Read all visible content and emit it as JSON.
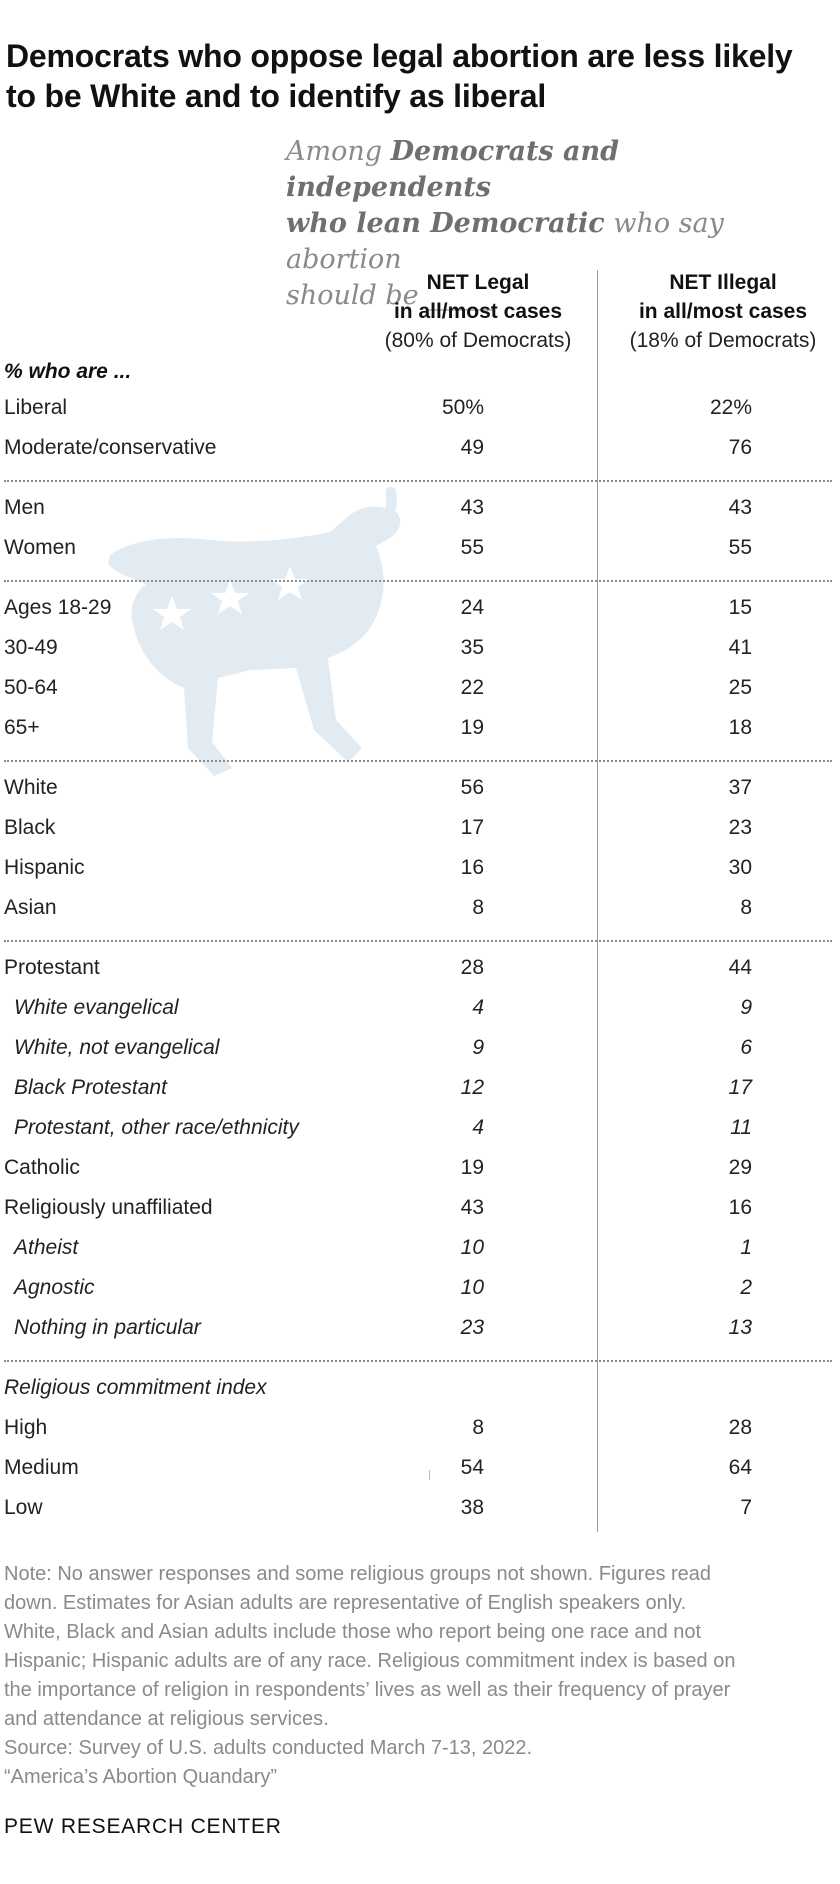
{
  "title_lines": [
    "Democrats who oppose legal abortion are less likely",
    "to be White and to identify as liberal"
  ],
  "subtitle": {
    "line1_plain": "Among ",
    "line1_bold": "Democrats and independents",
    "line2_bold": "who lean Democratic",
    "line2_plain": " who say abortion",
    "line3": "should be _____"
  },
  "columns": [
    {
      "line1": "NET Legal",
      "line2": "in all/most cases",
      "line3": "(80% of Democrats)"
    },
    {
      "line1": "NET Illegal",
      "line2": "in all/most cases",
      "line3": "(18% of Democrats)"
    }
  ],
  "section_label": "% who are ...",
  "groups": [
    {
      "header": "",
      "rows": [
        {
          "label": "Liberal",
          "legal": "50%",
          "illegal": "22%",
          "sub": false
        },
        {
          "label": "Moderate/conservative",
          "legal": "49",
          "illegal": "76",
          "sub": false
        }
      ]
    },
    {
      "header": "",
      "rows": [
        {
          "label": "Men",
          "legal": "43",
          "illegal": "43",
          "sub": false
        },
        {
          "label": "Women",
          "legal": "55",
          "illegal": "55",
          "sub": false
        }
      ]
    },
    {
      "header": "",
      "rows": [
        {
          "label": "Ages 18-29",
          "legal": "24",
          "illegal": "15",
          "sub": false
        },
        {
          "label": "30-49",
          "legal": "35",
          "illegal": "41",
          "sub": false
        },
        {
          "label": "50-64",
          "legal": "22",
          "illegal": "25",
          "sub": false
        },
        {
          "label": "65+",
          "legal": "19",
          "illegal": "18",
          "sub": false
        }
      ]
    },
    {
      "header": "",
      "rows": [
        {
          "label": "White",
          "legal": "56",
          "illegal": "37",
          "sub": false
        },
        {
          "label": "Black",
          "legal": "17",
          "illegal": "23",
          "sub": false
        },
        {
          "label": "Hispanic",
          "legal": "16",
          "illegal": "30",
          "sub": false
        },
        {
          "label": "Asian",
          "legal": "8",
          "illegal": "8",
          "sub": false
        }
      ]
    },
    {
      "header": "",
      "rows": [
        {
          "label": "Protestant",
          "legal": "28",
          "illegal": "44",
          "sub": false
        },
        {
          "label": "White evangelical",
          "legal": "4",
          "illegal": "9",
          "sub": true
        },
        {
          "label": "White, not evangelical",
          "legal": "9",
          "illegal": "6",
          "sub": true
        },
        {
          "label": "Black Protestant",
          "legal": "12",
          "illegal": "17",
          "sub": true
        },
        {
          "label": "Protestant, other race/ethnicity",
          "legal": "4",
          "illegal": "11",
          "sub": true
        },
        {
          "label": "Catholic",
          "legal": "19",
          "illegal": "29",
          "sub": false
        },
        {
          "label": "Religiously unaffiliated",
          "legal": "43",
          "illegal": "16",
          "sub": false
        },
        {
          "label": "Atheist",
          "legal": "10",
          "illegal": "1",
          "sub": true
        },
        {
          "label": "Agnostic",
          "legal": "10",
          "illegal": "2",
          "sub": true
        },
        {
          "label": "Nothing in particular",
          "legal": "23",
          "illegal": "13",
          "sub": true
        }
      ]
    },
    {
      "header": "Religious commitment index",
      "rows": [
        {
          "label": "High",
          "legal": "8",
          "illegal": "28",
          "sub": false
        },
        {
          "label": "Medium",
          "legal": "54",
          "illegal": "64",
          "sub": false
        },
        {
          "label": "Low",
          "legal": "38",
          "illegal": "7",
          "sub": false
        }
      ]
    }
  ],
  "note_lines": [
    "Note: No answer responses and some religious groups not shown. Figures read",
    "down. Estimates for Asian adults are representative of English speakers only.",
    "White, Black and Asian adults include those who report being one race and not",
    "Hispanic; Hispanic adults are of any race. Religious commitment index is based on",
    "the importance of religion in respondents’ lives as well as their frequency of prayer",
    "and attendance at religious services.",
    "Source: Survey of U.S. adults conducted March 7-13, 2022.",
    "“America’s Abortion Quandary”"
  ],
  "brand": "PEW RESEARCH CENTER",
  "colors": {
    "watermark": "#e3ebf2",
    "divider": "#8c8c8c",
    "note_text": "#8a8a8a"
  },
  "chart_data": {
    "type": "table",
    "columns": [
      "NET Legal in all/most cases (80% of Democrats)",
      "NET Illegal in all/most cases (18% of Democrats)"
    ],
    "rows": [
      {
        "label": "Liberal",
        "values": [
          50,
          22
        ]
      },
      {
        "label": "Moderate/conservative",
        "values": [
          49,
          76
        ]
      },
      {
        "label": "Men",
        "values": [
          43,
          43
        ]
      },
      {
        "label": "Women",
        "values": [
          55,
          55
        ]
      },
      {
        "label": "Ages 18-29",
        "values": [
          24,
          15
        ]
      },
      {
        "label": "30-49",
        "values": [
          35,
          41
        ]
      },
      {
        "label": "50-64",
        "values": [
          22,
          25
        ]
      },
      {
        "label": "65+",
        "values": [
          19,
          18
        ]
      },
      {
        "label": "White",
        "values": [
          56,
          37
        ]
      },
      {
        "label": "Black",
        "values": [
          17,
          23
        ]
      },
      {
        "label": "Hispanic",
        "values": [
          16,
          30
        ]
      },
      {
        "label": "Asian",
        "values": [
          8,
          8
        ]
      },
      {
        "label": "Protestant",
        "values": [
          28,
          44
        ]
      },
      {
        "label": "White evangelical",
        "values": [
          4,
          9
        ]
      },
      {
        "label": "White, not evangelical",
        "values": [
          9,
          6
        ]
      },
      {
        "label": "Black Protestant",
        "values": [
          12,
          17
        ]
      },
      {
        "label": "Protestant, other race/ethnicity",
        "values": [
          4,
          11
        ]
      },
      {
        "label": "Catholic",
        "values": [
          19,
          29
        ]
      },
      {
        "label": "Religiously unaffiliated",
        "values": [
          43,
          16
        ]
      },
      {
        "label": "Atheist",
        "values": [
          10,
          1
        ]
      },
      {
        "label": "Agnostic",
        "values": [
          10,
          2
        ]
      },
      {
        "label": "Nothing in particular",
        "values": [
          23,
          13
        ]
      },
      {
        "label": "High",
        "values": [
          8,
          28
        ]
      },
      {
        "label": "Medium",
        "values": [
          54,
          64
        ]
      },
      {
        "label": "Low",
        "values": [
          38,
          7
        ]
      }
    ]
  }
}
